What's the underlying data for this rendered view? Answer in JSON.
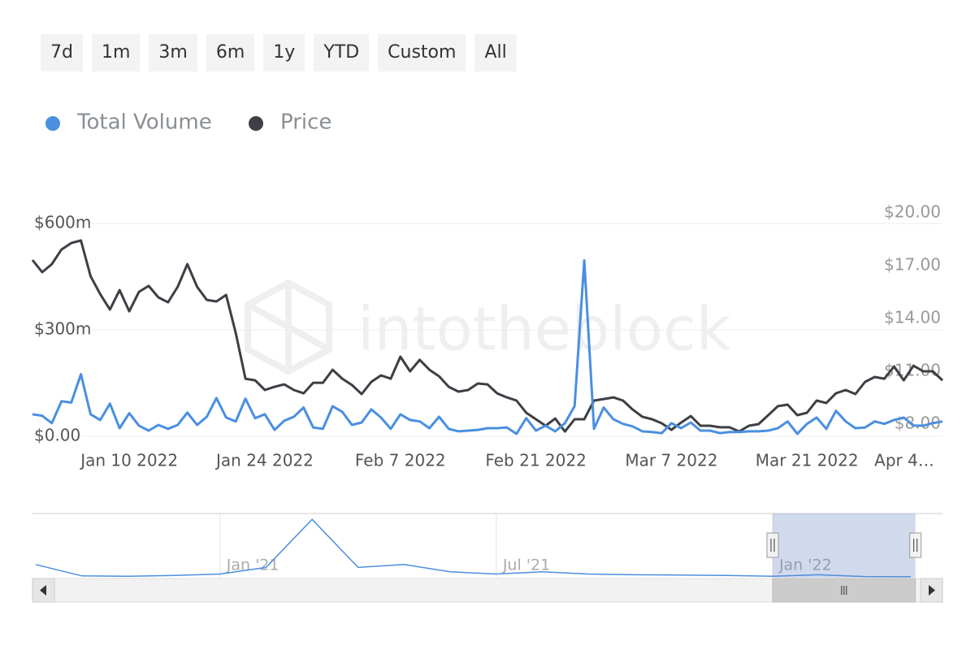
{
  "range_buttons": [
    "7d",
    "1m",
    "3m",
    "6m",
    "1y",
    "YTD",
    "Custom",
    "All"
  ],
  "chart_data": {
    "type": "line",
    "watermark": "intotheblock",
    "legend": "top-left",
    "grid": true,
    "x": [
      "2021-12-31",
      "2022-01-01",
      "2022-01-02",
      "2022-01-03",
      "2022-01-04",
      "2022-01-05",
      "2022-01-06",
      "2022-01-07",
      "2022-01-08",
      "2022-01-09",
      "2022-01-10",
      "2022-01-11",
      "2022-01-12",
      "2022-01-13",
      "2022-01-14",
      "2022-01-15",
      "2022-01-16",
      "2022-01-17",
      "2022-01-18",
      "2022-01-19",
      "2022-01-20",
      "2022-01-21",
      "2022-01-22",
      "2022-01-23",
      "2022-01-24",
      "2022-01-25",
      "2022-01-26",
      "2022-01-27",
      "2022-01-28",
      "2022-01-29",
      "2022-01-30",
      "2022-01-31",
      "2022-02-01",
      "2022-02-02",
      "2022-02-03",
      "2022-02-04",
      "2022-02-05",
      "2022-02-06",
      "2022-02-07",
      "2022-02-08",
      "2022-02-09",
      "2022-02-10",
      "2022-02-11",
      "2022-02-12",
      "2022-02-13",
      "2022-02-14",
      "2022-02-15",
      "2022-02-16",
      "2022-02-17",
      "2022-02-18",
      "2022-02-19",
      "2022-02-20",
      "2022-02-21",
      "2022-02-22",
      "2022-02-23",
      "2022-02-24",
      "2022-02-25",
      "2022-02-26",
      "2022-02-27",
      "2022-02-28",
      "2022-03-01",
      "2022-03-02",
      "2022-03-03",
      "2022-03-04",
      "2022-03-05",
      "2022-03-06",
      "2022-03-07",
      "2022-03-08",
      "2022-03-09",
      "2022-03-10",
      "2022-03-11",
      "2022-03-12",
      "2022-03-13",
      "2022-03-14",
      "2022-03-15",
      "2022-03-16",
      "2022-03-17",
      "2022-03-18",
      "2022-03-19",
      "2022-03-20",
      "2022-03-21",
      "2022-03-22",
      "2022-03-23",
      "2022-03-24",
      "2022-03-25",
      "2022-03-26",
      "2022-03-27",
      "2022-03-28",
      "2022-03-29",
      "2022-03-30",
      "2022-03-31",
      "2022-04-01",
      "2022-04-02",
      "2022-04-03",
      "2022-04-04"
    ],
    "series": [
      {
        "name": "Total Volume",
        "color": "#4a8fe0",
        "axis": "y",
        "values": [
          62,
          58,
          37,
          99,
          95,
          175,
          62,
          46,
          92,
          23,
          65,
          30,
          16,
          32,
          21,
          32,
          67,
          32,
          55,
          108,
          53,
          42,
          106,
          51,
          62,
          18,
          44,
          55,
          81,
          25,
          21,
          85,
          69,
          32,
          39,
          76,
          53,
          21,
          62,
          46,
          42,
          23,
          55,
          21,
          14,
          16,
          18,
          23,
          23,
          25,
          7,
          51,
          16,
          30,
          14,
          37,
          85,
          496,
          21,
          81,
          48,
          35,
          28,
          14,
          12,
          9,
          37,
          23,
          39,
          16,
          16,
          9,
          12,
          12,
          14,
          14,
          16,
          23,
          42,
          7,
          35,
          53,
          21,
          72,
          42,
          23,
          25,
          42,
          35,
          46,
          53,
          30,
          30,
          37,
          42
        ]
      },
      {
        "name": "Price",
        "color": "#3c3f44",
        "axis": "y2",
        "values": [
          17.32,
          16.63,
          17.09,
          17.92,
          18.29,
          18.43,
          16.4,
          15.38,
          14.51,
          15.61,
          14.41,
          15.52,
          15.85,
          15.2,
          14.92,
          15.8,
          17.09,
          15.8,
          15.06,
          14.97,
          15.34,
          13.17,
          10.58,
          10.49,
          9.94,
          10.12,
          10.26,
          9.94,
          9.75,
          10.35,
          10.35,
          11.09,
          10.58,
          10.22,
          9.71,
          10.4,
          10.77,
          10.58,
          11.83,
          11.0,
          11.65,
          11.09,
          10.72,
          10.12,
          9.85,
          9.94,
          10.31,
          10.26,
          9.75,
          9.52,
          9.34,
          8.65,
          8.28,
          7.91,
          8.32,
          7.58,
          8.28,
          8.28,
          9.34,
          9.43,
          9.52,
          9.34,
          8.83,
          8.42,
          8.28,
          8.05,
          7.68,
          8.09,
          8.46,
          7.91,
          7.91,
          7.82,
          7.82,
          7.58,
          7.91,
          8.0,
          8.51,
          9.02,
          9.11,
          8.51,
          8.65,
          9.34,
          9.2,
          9.75,
          9.94,
          9.71,
          10.4,
          10.68,
          10.58,
          11.28,
          10.49,
          11.32,
          11.0,
          11.0,
          10.49
        ]
      }
    ],
    "xlim": [
      "2021-12-31",
      "2022-04-04"
    ],
    "xticks": [
      {
        "value": "2022-01-10",
        "label": "Jan 10 2022"
      },
      {
        "value": "2022-01-24",
        "label": "Jan 24 2022"
      },
      {
        "value": "2022-02-07",
        "label": "Feb 7 2022"
      },
      {
        "value": "2022-02-21",
        "label": "Feb 21 2022"
      },
      {
        "value": "2022-03-07",
        "label": "Mar 7 2022"
      },
      {
        "value": "2022-03-21",
        "label": "Mar 21 2022"
      },
      {
        "value": "2022-04-04",
        "label": "Apr 4…"
      }
    ],
    "ylim": [
      0,
      630
    ],
    "yticks": [
      {
        "value": 0,
        "label": "$0.00"
      },
      {
        "value": 300,
        "label": "$300m"
      },
      {
        "value": 600,
        "label": "$600m"
      }
    ],
    "y2lim": [
      7.31,
      20
    ],
    "y2ticks": [
      {
        "value": 8,
        "label": "$8.00"
      },
      {
        "value": 11,
        "label": "$11.00"
      },
      {
        "value": 14,
        "label": "$14.00"
      },
      {
        "value": 17,
        "label": "$17.00"
      },
      {
        "value": 20,
        "label": "$20.00"
      }
    ]
  },
  "navigator": {
    "type": "line",
    "color": "#4a8fe0",
    "x": [
      "2020-09",
      "2020-10",
      "2020-11",
      "2020-12",
      "2021-01",
      "2021-02",
      "2021-03",
      "2021-04",
      "2021-05",
      "2021-06",
      "2021-07",
      "2021-08",
      "2021-09",
      "2021-10",
      "2021-11",
      "2021-12",
      "2022-01",
      "2022-02",
      "2022-03",
      "2022-04"
    ],
    "values": [
      900,
      120,
      100,
      150,
      250,
      700,
      4000,
      700,
      900,
      400,
      250,
      400,
      250,
      200,
      180,
      150,
      100,
      200,
      80,
      60
    ],
    "xlim": [
      "2020-09",
      "2022-04"
    ],
    "ylim": [
      0,
      4400
    ],
    "xticks": [
      {
        "value": "2021-01",
        "label": "Jan '21"
      },
      {
        "value": "2021-07",
        "label": "Jul '21"
      },
      {
        "value": "2022-01",
        "label": "Jan '22"
      }
    ]
  }
}
